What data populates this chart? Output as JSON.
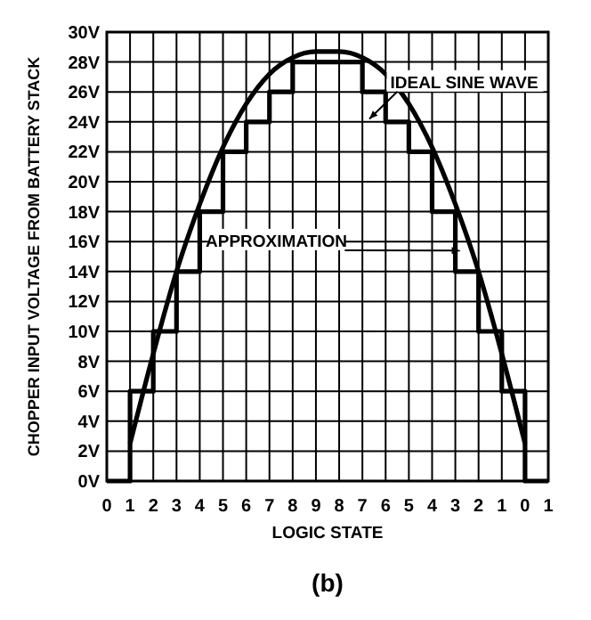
{
  "chart_data": {
    "type": "line",
    "xlabel": "LOGIC STATE",
    "ylabel": "CHOPPER INPUT VOLTAGE FROM BATTERY STACK",
    "annotations": [
      "(b)"
    ],
    "categories": [
      "0",
      "1",
      "2",
      "3",
      "4",
      "5",
      "6",
      "7",
      "8",
      "9",
      "8",
      "7",
      "6",
      "5",
      "4",
      "3",
      "2",
      "1",
      "0",
      "1"
    ],
    "ylim": [
      0,
      30
    ],
    "yticks": [
      {
        "value": 0,
        "label": "0V"
      },
      {
        "value": 2,
        "label": "2V"
      },
      {
        "value": 4,
        "label": "4V"
      },
      {
        "value": 6,
        "label": "6V"
      },
      {
        "value": 8,
        "label": "8V"
      },
      {
        "value": 10,
        "label": "10V"
      },
      {
        "value": 12,
        "label": "12V"
      },
      {
        "value": 14,
        "label": "14V"
      },
      {
        "value": 16,
        "label": "16V"
      },
      {
        "value": 18,
        "label": "18V"
      },
      {
        "value": 20,
        "label": "20V"
      },
      {
        "value": 22,
        "label": "22V"
      },
      {
        "value": 24,
        "label": "24V"
      },
      {
        "value": 26,
        "label": "26V"
      },
      {
        "value": 28,
        "label": "28V"
      },
      {
        "value": 30,
        "label": "30V"
      }
    ],
    "grid": true,
    "line_style": "solid",
    "series": [
      {
        "name": "IDEAL SINE WAVE",
        "color": "#000000",
        "values": [
          null,
          2.5,
          8.5,
          14,
          18.5,
          22.3,
          25.2,
          27.2,
          28.3,
          28.7,
          28.7,
          28.3,
          27.2,
          25.2,
          22.3,
          18.5,
          14,
          8.5,
          2.5,
          null
        ]
      },
      {
        "name": "APPROXIMATION",
        "type": "step",
        "color": "#000000",
        "values": [
          0,
          6,
          10,
          14,
          18,
          22,
          24,
          26,
          28,
          28,
          28,
          26,
          24,
          22,
          18,
          14,
          10,
          6,
          0,
          0
        ]
      }
    ]
  }
}
